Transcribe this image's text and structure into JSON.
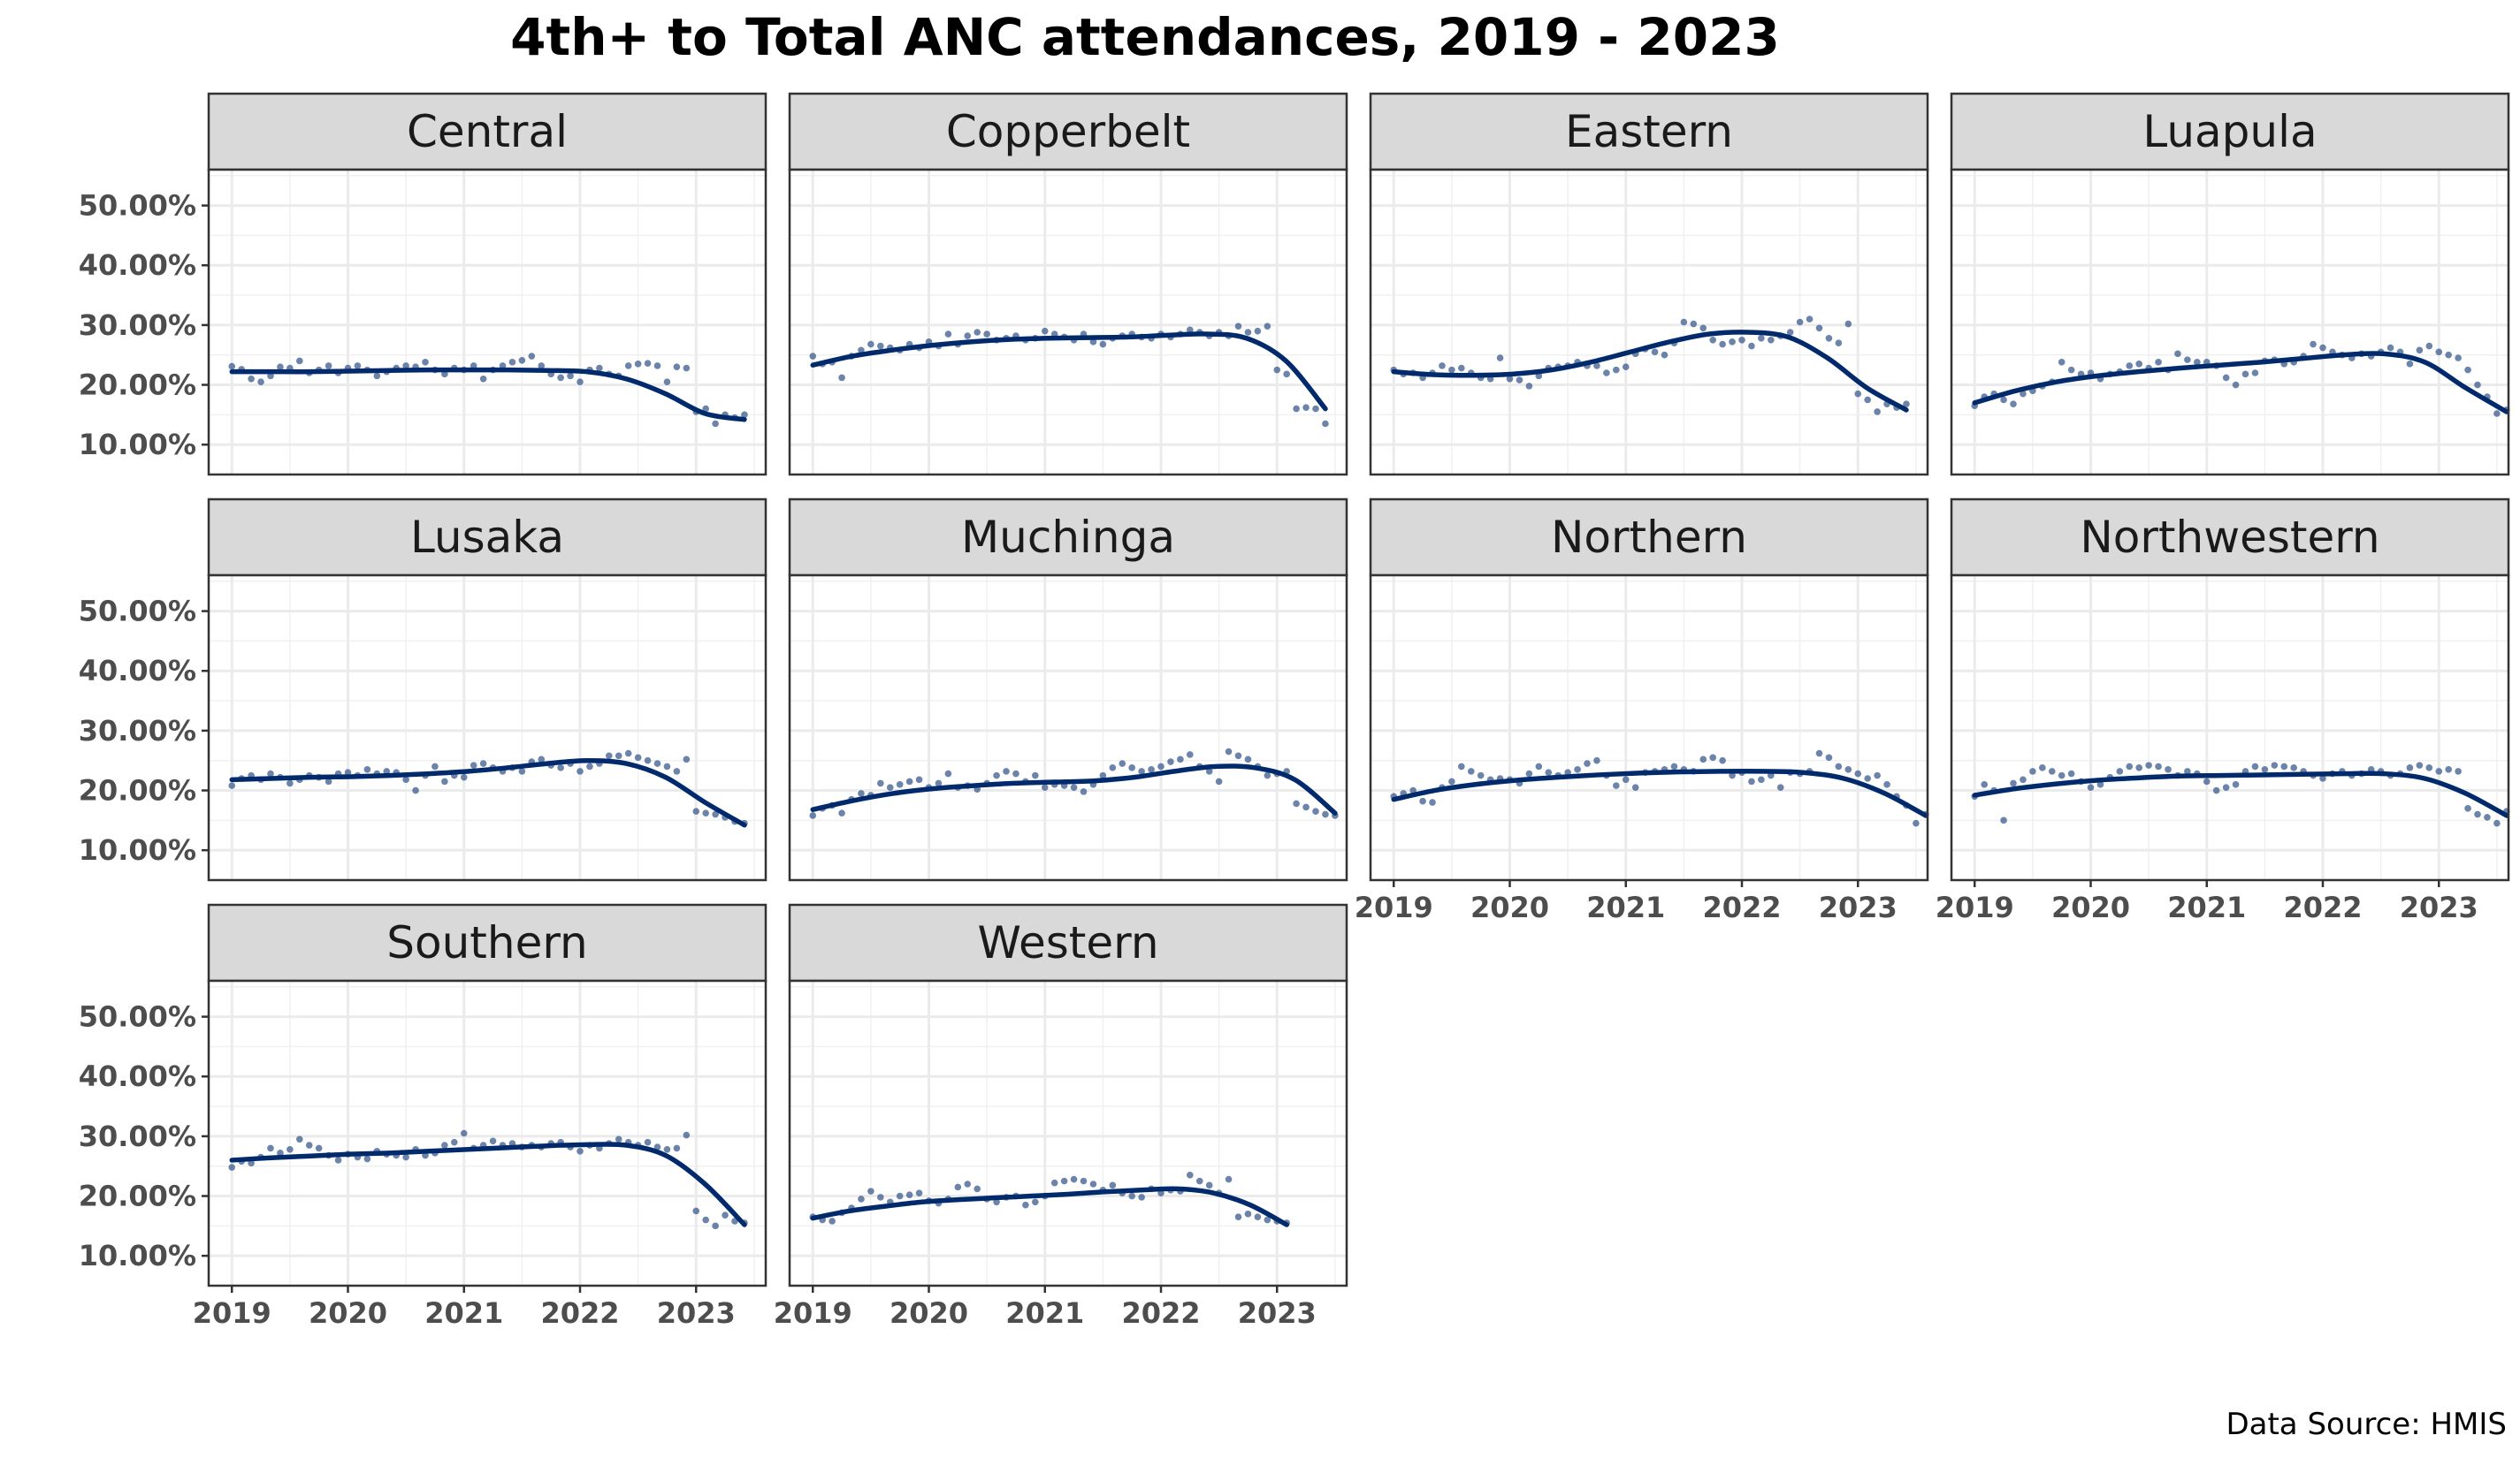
{
  "chart_data": {
    "type": "scatter",
    "title": "4th+ to Total ANC attendances, 2019 - 2023",
    "caption": "Data Source: HMIS",
    "y_ticks": [
      "10.00%",
      "20.00%",
      "30.00%",
      "40.00%",
      "50.00%"
    ],
    "y_tick_values": [
      0.1,
      0.2,
      0.3,
      0.4,
      0.5
    ],
    "x_ticks": [
      "2019",
      "2020",
      "2021",
      "2022",
      "2023"
    ],
    "x_tick_values": [
      2019,
      2020,
      2021,
      2022,
      2023
    ],
    "xlim": [
      2018.8,
      2023.6
    ],
    "ylim": [
      0.05,
      0.56
    ],
    "grid": true,
    "point_color": "#3b5b8c",
    "line_color": "#002a6c",
    "panels": [
      {
        "name": "Central",
        "points": [
          0.231,
          0.226,
          0.21,
          0.205,
          0.215,
          0.23,
          0.228,
          0.24,
          0.22,
          0.225,
          0.232,
          0.22,
          0.228,
          0.232,
          0.225,
          0.215,
          0.222,
          0.228,
          0.232,
          0.23,
          0.238,
          0.225,
          0.218,
          0.228,
          0.225,
          0.232,
          0.21,
          0.225,
          0.232,
          0.238,
          0.241,
          0.248,
          0.232,
          0.218,
          0.212,
          0.215,
          0.205,
          0.225,
          0.228,
          0.218,
          0.215,
          0.232,
          0.235,
          0.236,
          0.232,
          0.205,
          0.23,
          0.228,
          0.155,
          0.16,
          0.135,
          0.15,
          0.145,
          0.15
        ],
        "trend": [
          0.222,
          0.222,
          0.222,
          0.223,
          0.224,
          0.225,
          0.225,
          0.225,
          0.224,
          0.222,
          0.21,
          0.185,
          0.152,
          0.142
        ]
      },
      {
        "name": "Copperbelt",
        "points": [
          0.248,
          0.235,
          0.238,
          0.212,
          0.248,
          0.258,
          0.268,
          0.265,
          0.262,
          0.258,
          0.268,
          0.262,
          0.272,
          0.265,
          0.285,
          0.268,
          0.282,
          0.288,
          0.285,
          0.275,
          0.278,
          0.282,
          0.275,
          0.278,
          0.29,
          0.285,
          0.28,
          0.275,
          0.285,
          0.272,
          0.268,
          0.278,
          0.282,
          0.285,
          0.28,
          0.278,
          0.285,
          0.28,
          0.285,
          0.292,
          0.288,
          0.282,
          0.288,
          0.282,
          0.298,
          0.288,
          0.29,
          0.298,
          0.225,
          0.218,
          0.16,
          0.162,
          0.16,
          0.135
        ],
        "trend": [
          0.233,
          0.248,
          0.258,
          0.266,
          0.272,
          0.276,
          0.278,
          0.279,
          0.28,
          0.283,
          0.285,
          0.278,
          0.24,
          0.16
        ]
      },
      {
        "name": "Eastern",
        "points": [
          0.225,
          0.218,
          0.22,
          0.212,
          0.22,
          0.232,
          0.225,
          0.228,
          0.22,
          0.212,
          0.21,
          0.245,
          0.21,
          0.208,
          0.198,
          0.215,
          0.228,
          0.23,
          0.232,
          0.238,
          0.232,
          0.232,
          0.22,
          0.225,
          0.23,
          0.252,
          0.26,
          0.255,
          0.25,
          0.27,
          0.305,
          0.302,
          0.295,
          0.275,
          0.268,
          0.272,
          0.275,
          0.265,
          0.278,
          0.275,
          0.282,
          0.288,
          0.305,
          0.31,
          0.295,
          0.278,
          0.27,
          0.302,
          0.185,
          0.175,
          0.155,
          0.168,
          0.162,
          0.168
        ],
        "trend": [
          0.222,
          0.217,
          0.216,
          0.218,
          0.225,
          0.238,
          0.255,
          0.272,
          0.285,
          0.288,
          0.28,
          0.245,
          0.195,
          0.158
        ]
      },
      {
        "name": "Luapula",
        "points": [
          0.165,
          0.18,
          0.185,
          0.175,
          0.168,
          0.185,
          0.19,
          0.198,
          0.205,
          0.238,
          0.225,
          0.218,
          0.22,
          0.21,
          0.218,
          0.222,
          0.232,
          0.235,
          0.228,
          0.238,
          0.225,
          0.252,
          0.242,
          0.238,
          0.238,
          0.232,
          0.212,
          0.2,
          0.218,
          0.22,
          0.24,
          0.242,
          0.235,
          0.238,
          0.248,
          0.268,
          0.262,
          0.255,
          0.25,
          0.245,
          0.252,
          0.248,
          0.255,
          0.262,
          0.255,
          0.235,
          0.258,
          0.265,
          0.255,
          0.25,
          0.245,
          0.225,
          0.2,
          0.18,
          0.152,
          0.158
        ],
        "trend": [
          0.17,
          0.19,
          0.205,
          0.215,
          0.222,
          0.228,
          0.233,
          0.238,
          0.244,
          0.25,
          0.252,
          0.238,
          0.195,
          0.155
        ]
      },
      {
        "name": "Lusaka",
        "points": [
          0.208,
          0.22,
          0.225,
          0.218,
          0.228,
          0.222,
          0.212,
          0.218,
          0.225,
          0.222,
          0.215,
          0.228,
          0.23,
          0.225,
          0.235,
          0.228,
          0.232,
          0.23,
          0.218,
          0.2,
          0.225,
          0.24,
          0.215,
          0.225,
          0.222,
          0.242,
          0.245,
          0.238,
          0.232,
          0.238,
          0.232,
          0.248,
          0.252,
          0.242,
          0.238,
          0.245,
          0.232,
          0.24,
          0.245,
          0.258,
          0.258,
          0.262,
          0.255,
          0.25,
          0.245,
          0.24,
          0.232,
          0.252,
          0.165,
          0.162,
          0.16,
          0.155,
          0.148,
          0.145
        ],
        "trend": [
          0.218,
          0.22,
          0.222,
          0.223,
          0.225,
          0.228,
          0.232,
          0.238,
          0.245,
          0.25,
          0.245,
          0.222,
          0.18,
          0.142
        ]
      },
      {
        "name": "Muchinga",
        "points": [
          0.158,
          0.17,
          0.175,
          0.162,
          0.185,
          0.195,
          0.192,
          0.212,
          0.205,
          0.21,
          0.215,
          0.218,
          0.205,
          0.212,
          0.228,
          0.205,
          0.208,
          0.202,
          0.212,
          0.225,
          0.232,
          0.228,
          0.215,
          0.225,
          0.205,
          0.21,
          0.208,
          0.205,
          0.198,
          0.21,
          0.225,
          0.238,
          0.245,
          0.238,
          0.232,
          0.235,
          0.24,
          0.248,
          0.252,
          0.26,
          0.24,
          0.232,
          0.215,
          0.265,
          0.258,
          0.252,
          0.24,
          0.225,
          0.228,
          0.232,
          0.178,
          0.172,
          0.165,
          0.16,
          0.158
        ],
        "trend": [
          0.168,
          0.183,
          0.195,
          0.203,
          0.208,
          0.212,
          0.214,
          0.216,
          0.222,
          0.232,
          0.24,
          0.238,
          0.218,
          0.162
        ]
      },
      {
        "name": "Northern",
        "points": [
          0.19,
          0.195,
          0.2,
          0.182,
          0.18,
          0.205,
          0.215,
          0.24,
          0.232,
          0.225,
          0.218,
          0.22,
          0.218,
          0.212,
          0.228,
          0.24,
          0.23,
          0.225,
          0.23,
          0.235,
          0.245,
          0.25,
          0.225,
          0.208,
          0.218,
          0.205,
          0.23,
          0.232,
          0.235,
          0.24,
          0.235,
          0.232,
          0.252,
          0.255,
          0.25,
          0.225,
          0.23,
          0.215,
          0.218,
          0.225,
          0.205,
          0.23,
          0.228,
          0.232,
          0.262,
          0.255,
          0.24,
          0.235,
          0.228,
          0.22,
          0.225,
          0.21,
          0.19,
          0.175,
          0.145,
          0.16
        ],
        "trend": [
          0.185,
          0.2,
          0.21,
          0.217,
          0.222,
          0.226,
          0.229,
          0.231,
          0.232,
          0.232,
          0.23,
          0.22,
          0.195,
          0.158
        ]
      },
      {
        "name": "Northwestern",
        "points": [
          0.19,
          0.21,
          0.2,
          0.15,
          0.212,
          0.218,
          0.232,
          0.238,
          0.232,
          0.225,
          0.228,
          0.215,
          0.205,
          0.21,
          0.222,
          0.232,
          0.24,
          0.238,
          0.242,
          0.24,
          0.235,
          0.225,
          0.232,
          0.228,
          0.215,
          0.2,
          0.205,
          0.21,
          0.232,
          0.24,
          0.235,
          0.242,
          0.24,
          0.238,
          0.232,
          0.225,
          0.22,
          0.228,
          0.232,
          0.225,
          0.228,
          0.235,
          0.232,
          0.225,
          0.228,
          0.238,
          0.242,
          0.238,
          0.232,
          0.235,
          0.232,
          0.17,
          0.16,
          0.155,
          0.145,
          0.165
        ],
        "trend": [
          0.192,
          0.203,
          0.211,
          0.217,
          0.221,
          0.224,
          0.225,
          0.226,
          0.227,
          0.228,
          0.228,
          0.22,
          0.195,
          0.158
        ]
      },
      {
        "name": "Southern",
        "points": [
          0.248,
          0.258,
          0.255,
          0.265,
          0.28,
          0.272,
          0.278,
          0.295,
          0.285,
          0.28,
          0.268,
          0.26,
          0.27,
          0.265,
          0.262,
          0.275,
          0.27,
          0.268,
          0.265,
          0.278,
          0.268,
          0.272,
          0.285,
          0.29,
          0.305,
          0.28,
          0.285,
          0.292,
          0.285,
          0.288,
          0.282,
          0.285,
          0.282,
          0.288,
          0.29,
          0.282,
          0.275,
          0.285,
          0.28,
          0.288,
          0.295,
          0.29,
          0.285,
          0.29,
          0.282,
          0.278,
          0.28,
          0.302,
          0.175,
          0.16,
          0.15,
          0.168,
          0.158,
          0.155
        ],
        "trend": [
          0.26,
          0.264,
          0.267,
          0.27,
          0.272,
          0.275,
          0.278,
          0.281,
          0.284,
          0.286,
          0.285,
          0.268,
          0.22,
          0.152
        ]
      },
      {
        "name": "Western",
        "points": [
          0.165,
          0.16,
          0.158,
          0.172,
          0.18,
          0.195,
          0.208,
          0.198,
          0.19,
          0.2,
          0.202,
          0.205,
          0.192,
          0.188,
          0.195,
          0.215,
          0.22,
          0.212,
          0.195,
          0.19,
          0.198,
          0.2,
          0.185,
          0.19,
          0.2,
          0.222,
          0.225,
          0.228,
          0.225,
          0.22,
          0.21,
          0.218,
          0.205,
          0.2,
          0.198,
          0.212,
          0.205,
          0.21,
          0.208,
          0.235,
          0.225,
          0.218,
          0.205,
          0.228,
          0.165,
          0.17,
          0.165,
          0.16,
          0.158,
          0.155
        ],
        "trend": [
          0.163,
          0.175,
          0.183,
          0.19,
          0.194,
          0.197,
          0.2,
          0.203,
          0.207,
          0.21,
          0.212,
          0.205,
          0.185,
          0.152
        ]
      }
    ]
  }
}
